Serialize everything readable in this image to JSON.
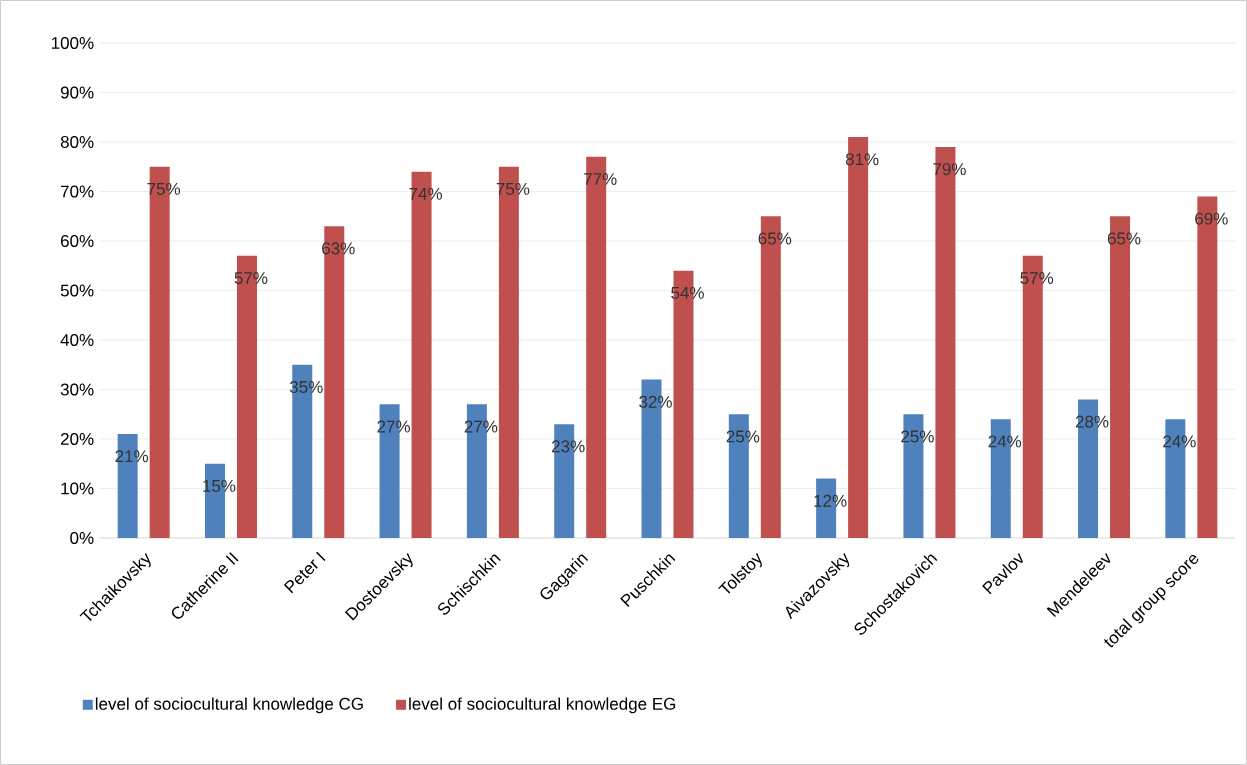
{
  "chart_data": {
    "type": "bar",
    "categories": [
      "Tchaikovsky",
      "Catherine II",
      "Peter I",
      "Dostoevsky",
      "Schischkin",
      "Gagarin",
      "Puschkin",
      "Tolstoy",
      "Aivazovsky",
      "Schostakovich",
      "Pavlov",
      "Mendeleev",
      "total group score"
    ],
    "series": [
      {
        "name": "level of sociocultural knowledge CG",
        "color": "#4f81bd",
        "values": [
          21,
          15,
          35,
          27,
          27,
          23,
          32,
          25,
          12,
          25,
          24,
          28,
          24
        ],
        "value_labels": [
          "21%",
          "15%",
          "35%",
          "27%",
          "27%",
          "23%",
          "32%",
          "25%",
          "12%",
          "25%",
          "24%",
          "28%",
          "24%"
        ]
      },
      {
        "name": "level of sociocultural knowledge EG",
        "color": "#c0504d",
        "values": [
          75,
          57,
          63,
          74,
          75,
          77,
          54,
          65,
          81,
          79,
          57,
          65,
          69
        ],
        "value_labels": [
          "75%",
          "57%",
          "63%",
          "74%",
          "75%",
          "77%",
          "54%",
          "65%",
          "81%",
          "79%",
          "57%",
          "65%",
          "69%"
        ]
      }
    ],
    "ylim": [
      0,
      100
    ],
    "yticks": [
      {
        "value": 0,
        "label": "0%"
      },
      {
        "value": 10,
        "label": "10%"
      },
      {
        "value": 20,
        "label": "20%"
      },
      {
        "value": 30,
        "label": "30%"
      },
      {
        "value": 40,
        "label": "40%"
      },
      {
        "value": 50,
        "label": "50%"
      },
      {
        "value": 60,
        "label": "60%"
      },
      {
        "value": 70,
        "label": "70%"
      },
      {
        "value": 80,
        "label": "80%"
      },
      {
        "value": 90,
        "label": "90%"
      },
      {
        "value": 100,
        "label": "100%"
      }
    ],
    "grid": "y",
    "legend": "bottom"
  }
}
